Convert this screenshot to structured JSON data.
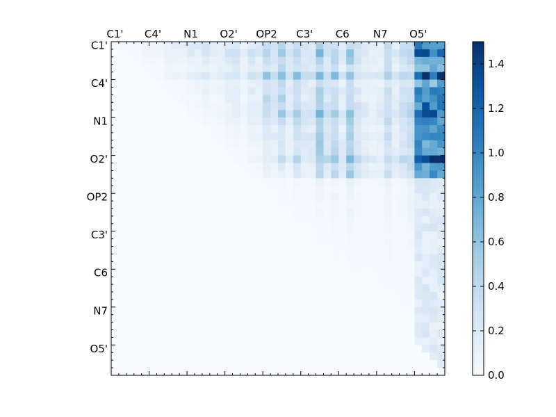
{
  "chart_data": {
    "type": "heatmap",
    "title": "",
    "xlabel": "",
    "ylabel": "",
    "colormap": "Blues",
    "x_tick_labels": [
      "C1'",
      "C4'",
      "N1",
      "O2'",
      "OP2",
      "C3'",
      "C6",
      "N7",
      "O5'"
    ],
    "y_tick_labels": [
      "C1'",
      "C4'",
      "N1",
      "O2'",
      "OP2",
      "C3'",
      "C6",
      "N7",
      "O5'"
    ],
    "x_axis_position": "top",
    "grid": false,
    "matrix_size": 44,
    "colorbar": {
      "vmin": 0.0,
      "vmax": 1.5,
      "ticks": [
        "0.0",
        "0.2",
        "0.4",
        "0.6",
        "0.8",
        "1.0",
        "1.2",
        "1.4"
      ],
      "tick_values": [
        0.0,
        0.2,
        0.4,
        0.6,
        0.8,
        1.0,
        1.2,
        1.4
      ],
      "placement": "right"
    },
    "description_regions": {
      "strong_block_rows": [
        0,
        17
      ],
      "strong_block_cols": [
        40,
        43
      ],
      "max_value": 1.5,
      "upper_triangular": true
    }
  }
}
